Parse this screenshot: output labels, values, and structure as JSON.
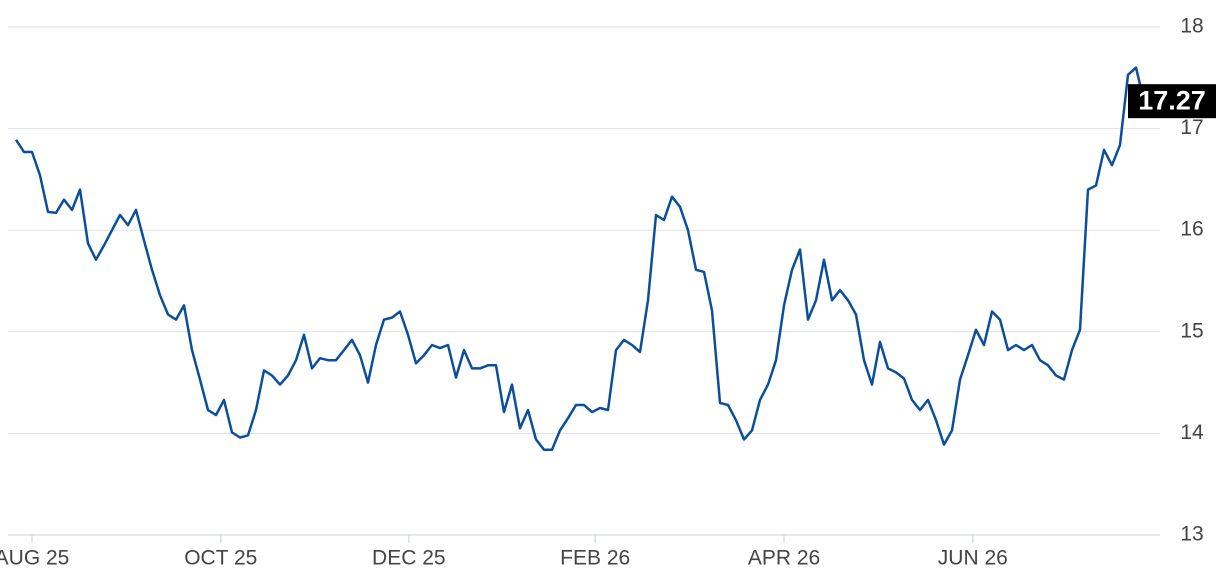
{
  "chart_data": {
    "type": "line",
    "values": [
      16.89,
      16.77,
      16.77,
      16.54,
      16.18,
      16.17,
      16.3,
      16.2,
      16.4,
      15.87,
      15.71,
      15.85,
      16.0,
      16.15,
      16.05,
      16.2,
      15.9,
      15.61,
      15.36,
      15.17,
      15.12,
      15.26,
      14.82,
      14.53,
      14.23,
      14.18,
      14.33,
      14.01,
      13.96,
      13.98,
      14.23,
      14.62,
      14.57,
      14.48,
      14.57,
      14.72,
      14.97,
      14.64,
      14.74,
      14.72,
      14.72,
      14.82,
      14.92,
      14.77,
      14.5,
      14.87,
      15.12,
      15.14,
      15.2,
      14.97,
      14.69,
      14.77,
      14.87,
      14.84,
      14.87,
      14.55,
      14.82,
      14.64,
      14.64,
      14.67,
      14.67,
      14.21,
      14.48,
      14.05,
      14.23,
      13.94,
      13.84,
      13.84,
      14.03,
      14.15,
      14.28,
      14.28,
      14.21,
      14.25,
      14.23,
      14.82,
      14.92,
      14.87,
      14.8,
      15.31,
      16.15,
      16.1,
      16.33,
      16.23,
      16.0,
      15.61,
      15.59,
      15.21,
      14.3,
      14.28,
      14.13,
      13.94,
      14.03,
      14.33,
      14.48,
      14.72,
      15.26,
      15.61,
      15.81,
      15.12,
      15.31,
      15.71,
      15.31,
      15.41,
      15.31,
      15.17,
      14.72,
      14.48,
      14.9,
      14.64,
      14.6,
      14.54,
      14.33,
      14.23,
      14.33,
      14.13,
      13.89,
      14.03,
      14.53,
      14.77,
      15.02,
      14.87,
      15.2,
      15.12,
      14.82,
      14.87,
      14.82,
      14.87,
      14.72,
      14.67,
      14.57,
      14.53,
      14.82,
      15.02,
      16.4,
      16.44,
      16.79,
      16.64,
      16.84,
      17.53,
      17.6,
      17.27
    ],
    "color": "#0b4f9c",
    "xlim": [
      -1,
      142
    ],
    "xticks": [
      {
        "value": 2,
        "label": "AUG 25"
      },
      {
        "value": 25.6,
        "label": "OCT 25"
      },
      {
        "value": 49.1,
        "label": "DEC 25"
      },
      {
        "value": 72.4,
        "label": "FEB 26"
      },
      {
        "value": 96,
        "label": "APR 26"
      },
      {
        "value": 119.6,
        "label": "JUN 26"
      }
    ],
    "ylim": [
      13,
      18
    ],
    "yticks": [
      13,
      14,
      15,
      16,
      17,
      18
    ],
    "grid": true
  }
}
